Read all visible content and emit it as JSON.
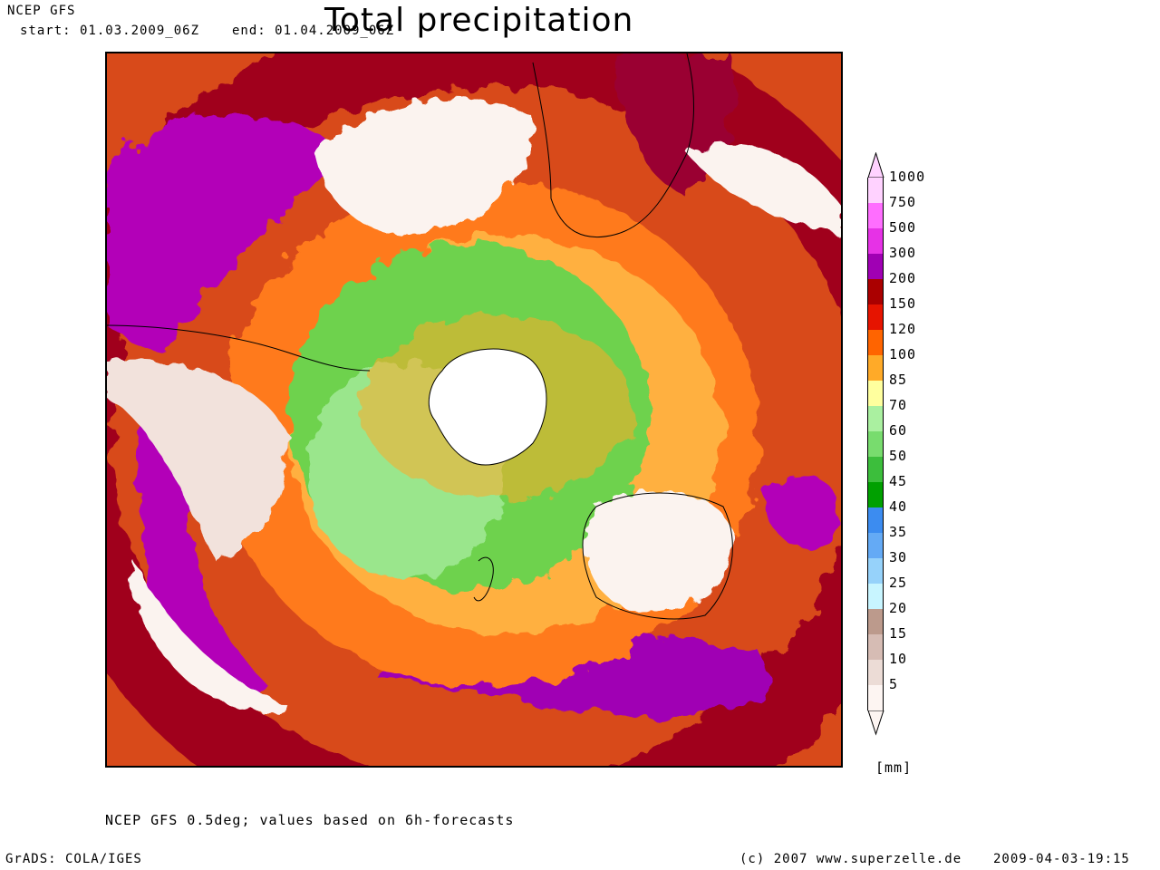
{
  "header": {
    "model": "NCEP GFS",
    "start": "start: 01.03.2009_06Z",
    "end": "end: 01.04.2009_06Z",
    "title": "Total precipitation"
  },
  "map": {
    "projection": "south polar stereographic",
    "features": [
      "antarctica",
      "south-america",
      "africa",
      "australia",
      "new-zealand"
    ]
  },
  "legend": {
    "unit": "[mm]",
    "levels": [
      {
        "label": "1000",
        "color": "#ffd2ff"
      },
      {
        "label": "750",
        "color": "#ff6eff"
      },
      {
        "label": "500",
        "color": "#e632e6"
      },
      {
        "label": "300",
        "color": "#a000b4"
      },
      {
        "label": "200",
        "color": "#aa0000"
      },
      {
        "label": "150",
        "color": "#e61400"
      },
      {
        "label": "120",
        "color": "#ff6400"
      },
      {
        "label": "100",
        "color": "#ffaa28"
      },
      {
        "label": "85",
        "color": "#ffff9e"
      },
      {
        "label": "70",
        "color": "#aaf0a0"
      },
      {
        "label": "60",
        "color": "#78dc6e"
      },
      {
        "label": "50",
        "color": "#3cbe3c"
      },
      {
        "label": "45",
        "color": "#00a000"
      },
      {
        "label": "40",
        "color": "#3c8cf0"
      },
      {
        "label": "35",
        "color": "#64aaf5"
      },
      {
        "label": "30",
        "color": "#96d2fa"
      },
      {
        "label": "25",
        "color": "#c8f5ff"
      },
      {
        "label": "20",
        "color": "#bc9a8c"
      },
      {
        "label": "15",
        "color": "#d6bcb4"
      },
      {
        "label": "10",
        "color": "#ecdcd6"
      },
      {
        "label": "5",
        "color": "#fdf5f2"
      }
    ]
  },
  "footer": {
    "note": "NCEP GFS 0.5deg; values based on 6h-forecasts",
    "software": "GrADS: COLA/IGES",
    "copyright": "(c) 2007 www.superzelle.de",
    "timestamp": "2009-04-03-19:15"
  }
}
